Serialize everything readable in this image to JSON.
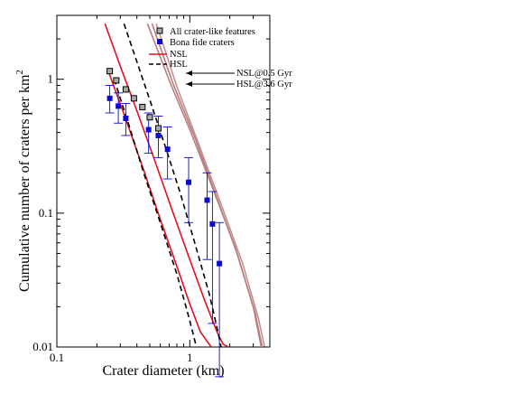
{
  "chart_data": {
    "type": "scatter",
    "title": "",
    "xlabel": "Crater diameter (km)",
    "ylabel": "Cumulative number of craters per km",
    "ylabel_superscript": "2",
    "x_scale": "log",
    "y_scale": "log",
    "xlim": [
      0.1,
      4.0
    ],
    "ylim": [
      0.01,
      3.0
    ],
    "x_ticks": [
      {
        "value": 0.1,
        "label": "0.1"
      },
      {
        "value": 1,
        "label": "1"
      }
    ],
    "y_ticks": [
      {
        "value": 0.01,
        "label": "0.01"
      },
      {
        "value": 0.1,
        "label": "0.1"
      },
      {
        "value": 1,
        "label": "1"
      }
    ],
    "grid": false,
    "legend_position": "top-right",
    "legend": [
      {
        "label": "All crater-like features",
        "kind": "open-square",
        "color": "#000000",
        "fill": "#a9a9a9"
      },
      {
        "label": "Bona fide craters",
        "kind": "filled-square",
        "color": "#0a0ad6"
      },
      {
        "label": "NSL",
        "kind": "solid-line",
        "color": "#e0141e"
      },
      {
        "label": "HSL",
        "kind": "dashed-line",
        "color": "#000000"
      }
    ],
    "annotations": [
      {
        "text": "NSL@0.5 Gyr",
        "points_to": "upper-brown-curve"
      },
      {
        "text": "HSL@3.6 Gyr",
        "points_to": "lower-brown-curve"
      }
    ],
    "series": [
      {
        "name": "All crater-like features",
        "marker": "open-square",
        "color": "#000000",
        "fill": "#a9a9a9",
        "x": [
          0.25,
          0.28,
          0.33,
          0.38,
          0.44,
          0.5,
          0.58
        ],
        "y": [
          1.15,
          0.98,
          0.84,
          0.72,
          0.62,
          0.52,
          0.43
        ]
      },
      {
        "name": "Bona fide craters",
        "marker": "filled-square",
        "color": "#0a0ad6",
        "x": [
          0.25,
          0.29,
          0.33,
          0.49,
          0.58,
          0.68,
          0.98,
          1.35,
          1.48,
          1.67
        ],
        "y": [
          0.72,
          0.63,
          0.51,
          0.42,
          0.38,
          0.3,
          0.17,
          0.125,
          0.083,
          0.042
        ],
        "y_err_low": [
          0.56,
          0.47,
          0.38,
          0.28,
          0.26,
          0.18,
          0.085,
          0.045,
          0.015,
          0.006
        ],
        "y_err_high": [
          0.9,
          0.79,
          0.66,
          0.56,
          0.53,
          0.44,
          0.26,
          0.2,
          0.145,
          0.085
        ]
      },
      {
        "name": "NSL",
        "style": "solid",
        "color": "#e0141e",
        "curves": [
          {
            "x": [
              0.23,
              0.3,
              0.4,
              0.55,
              0.75,
              1.0,
              1.3,
              1.6,
              1.78,
              1.95
            ],
            "y": [
              2.6,
              1.25,
              0.58,
              0.24,
              0.1,
              0.045,
              0.022,
              0.013,
              0.0105,
              0.01
            ]
          },
          {
            "x": [
              0.24,
              0.32,
              0.45,
              0.6,
              0.8,
              1.0,
              1.2,
              1.35,
              1.45
            ],
            "y": [
              1.2,
              0.55,
              0.21,
              0.09,
              0.04,
              0.021,
              0.013,
              0.011,
              0.01
            ]
          }
        ]
      },
      {
        "name": "HSL",
        "style": "dashed",
        "color": "#000000",
        "curves": [
          {
            "x": [
              0.32,
              0.4,
              0.5,
              0.65,
              0.85,
              1.1,
              1.4,
              1.6,
              1.72
            ],
            "y": [
              2.6,
              1.35,
              0.7,
              0.32,
              0.14,
              0.058,
              0.025,
              0.014,
              0.01
            ]
          },
          {
            "x": [
              0.27,
              0.35,
              0.45,
              0.6,
              0.8,
              0.95,
              1.05,
              1.12
            ],
            "y": [
              1.0,
              0.45,
              0.2,
              0.085,
              0.035,
              0.019,
              0.013,
              0.01
            ]
          }
        ]
      },
      {
        "name": "NSL@0.5 Gyr",
        "style": "solid",
        "color": "#b87d7d",
        "curves": [
          {
            "x": [
              0.48,
              0.7,
              1.0,
              1.5,
              2.2,
              3.0,
              3.45
            ],
            "y": [
              2.6,
              0.98,
              0.42,
              0.15,
              0.055,
              0.02,
              0.01
            ]
          },
          {
            "x": [
              0.52,
              0.75,
              1.1,
              1.6,
              2.3,
              3.1,
              3.5
            ],
            "y": [
              2.6,
              0.92,
              0.36,
              0.13,
              0.048,
              0.018,
              0.01
            ]
          }
        ]
      },
      {
        "name": "HSL@3.6 Gyr",
        "style": "solid",
        "color": "#c09090",
        "curves": [
          {
            "x": [
              0.56,
              0.8,
              1.15,
              1.7,
              2.5,
              3.3,
              3.65
            ],
            "y": [
              2.6,
              0.88,
              0.34,
              0.12,
              0.042,
              0.016,
              0.01
            ]
          }
        ]
      }
    ]
  }
}
